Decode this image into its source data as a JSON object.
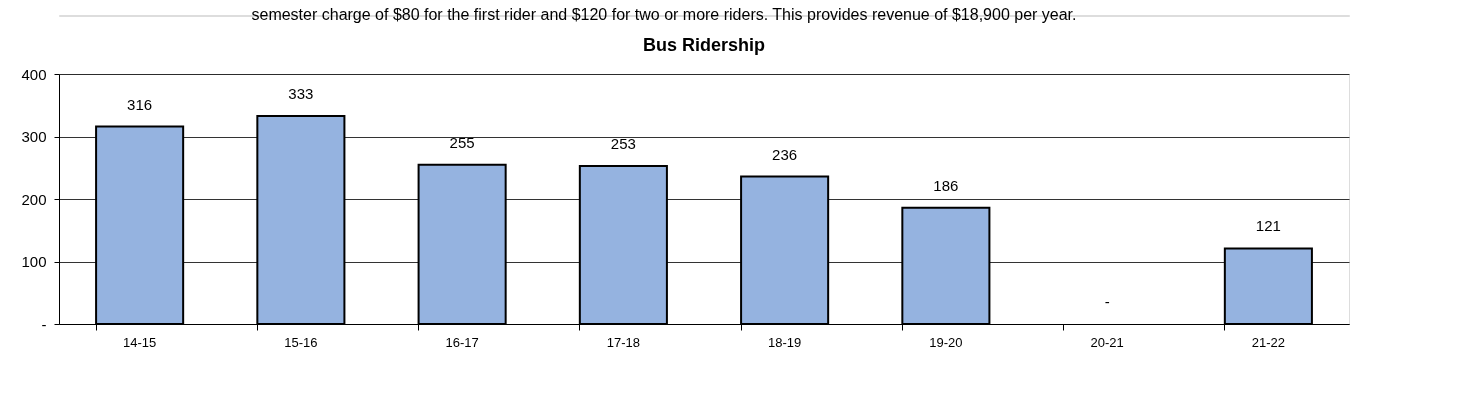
{
  "chart_data": {
    "type": "bar",
    "title": "Bus Ridership",
    "annotations": [
      "semester charge of $80 for the first rider and $120 for two or more riders. This provides revenue of $18,900 per year."
    ],
    "categories": [
      "14-15",
      "15-16",
      "16-17",
      "17-18",
      "18-19",
      "19-20",
      "20-21",
      "21-22"
    ],
    "values": [
      316,
      333,
      255,
      253,
      236,
      186,
      0,
      121
    ],
    "value_labels": [
      "316",
      "333",
      "255",
      "253",
      "236",
      "186",
      "-",
      "121"
    ],
    "color": "#95b3e0",
    "ylim": [
      0,
      400
    ],
    "yticks": [
      {
        "value": 0,
        "label": "-"
      },
      100,
      200,
      300,
      400
    ],
    "grid": "y"
  }
}
